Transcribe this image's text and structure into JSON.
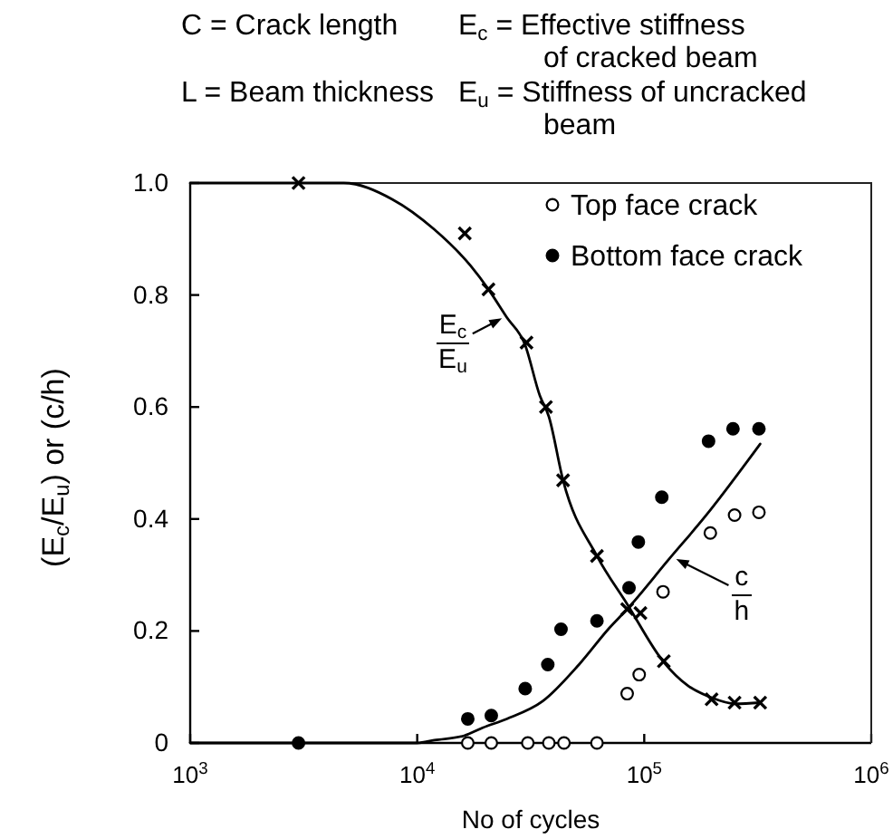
{
  "chart_data": {
    "type": "scatter",
    "xlabel": "No of cycles",
    "ylabel": "(E$_{c}$/E$_{u}$) or (c/h)",
    "annotations": [
      "C = Crack length",
      "E$_{c}$ = Effective stiffness\nof cracked beam",
      "L = Beam thickness",
      "E$_{u}$ = Stiffness of uncracked\nbeam",
      {
        "text": "E$_{c}$\nE$_{u}$",
        "x": 24000,
        "y": 0.76
      },
      {
        "text": "c\nh",
        "x": 136000,
        "y": 0.33
      }
    ],
    "log": "x",
    "xlim": [
      1000,
      1000000
    ],
    "xticks": [
      {
        "value": 1000,
        "label": "10$^{3}$"
      },
      {
        "value": 10000,
        "label": "10$^{4}$"
      },
      {
        "value": 100000,
        "label": "10$^{5}$"
      },
      {
        "value": 1000000,
        "label": "10$^{6}$"
      }
    ],
    "ylim": [
      0,
      1
    ],
    "yticks": [
      0,
      0.2,
      0.4,
      0.6,
      0.8,
      {
        "value": 1,
        "label": "1.0"
      }
    ],
    "legend": "top right",
    "series": [
      {
        "type": "line",
        "marker": "none",
        "color": "#000000",
        "x": [
          1000,
          4750,
          7760,
          11900,
          17200,
          20600,
          24800,
          29800,
          34700,
          38000,
          43900,
          61900,
          84100,
          121000,
          155000,
          198000,
          252000,
          324000
        ],
        "values": [
          1.0,
          1.0,
          0.971,
          0.917,
          0.852,
          0.81,
          0.76,
          0.712,
          0.62,
          0.583,
          0.469,
          0.334,
          0.248,
          0.146,
          0.103,
          0.081,
          0.07,
          0.072
        ]
      },
      {
        "type": "line",
        "marker": "none",
        "color": "#000000",
        "x": [
          1000,
          10000,
          11900,
          16100,
          19400,
          24800,
          35800,
          51600,
          70100,
          84100,
          129000,
          186000,
          324000
        ],
        "values": [
          0,
          0,
          0.005,
          0.013,
          0.027,
          0.043,
          0.075,
          0.14,
          0.205,
          0.239,
          0.329,
          0.405,
          0.534
        ]
      },
      {
        "marker": "cross",
        "color": "#000000",
        "x": [
          3000,
          16200,
          20600,
          30300,
          36900,
          43900,
          61900,
          84100,
          96200,
          122000,
          198000,
          250000,
          324000
        ],
        "values": [
          1.0,
          0.91,
          0.81,
          0.715,
          0.6,
          0.469,
          0.334,
          0.239,
          0.232,
          0.146,
          0.078,
          0.072,
          0.072
        ]
      },
      {
        "name": "Top face crack",
        "marker": "circle",
        "color": "#ffffff",
        "x": [
          16700,
          21200,
          30700,
          38000,
          44300,
          61900,
          84100,
          95000,
          121000,
          195500,
          250000,
          320000
        ],
        "values": [
          0,
          0,
          0,
          0,
          0,
          0,
          0.088,
          0.122,
          0.27,
          0.375,
          0.407,
          0.412
        ]
      },
      {
        "name": "Bottom face crack",
        "marker": "circle",
        "color": "#000000",
        "x": [
          3000,
          16700,
          21200,
          29900,
          37600,
          43000,
          61900,
          85700,
          94200,
          119500,
          192000,
          246000,
          320000
        ],
        "values": [
          0,
          0.043,
          0.049,
          0.097,
          0.14,
          0.203,
          0.218,
          0.277,
          0.359,
          0.439,
          0.539,
          0.561,
          0.561
        ]
      }
    ]
  }
}
